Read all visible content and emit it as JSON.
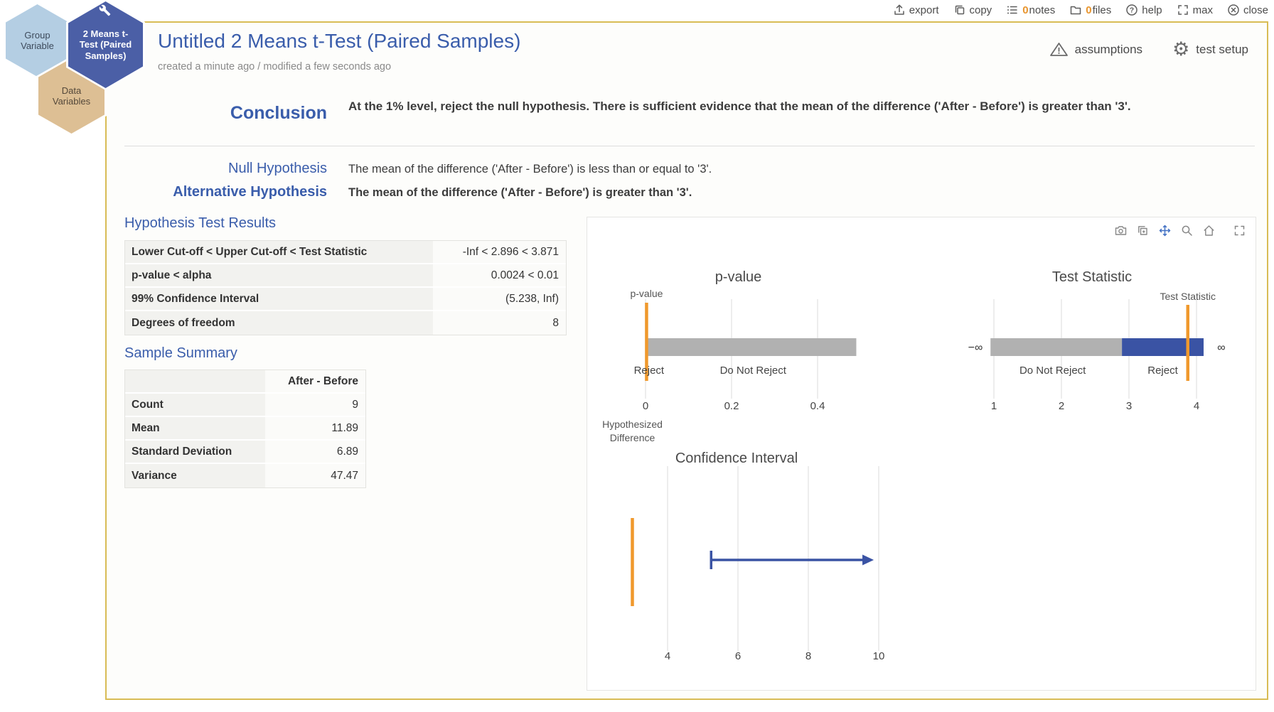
{
  "colors": {
    "accent_blue": "#3a5dab",
    "border_gold": "#d8bc55",
    "bar_gray": "#b3b3b3",
    "bar_blue": "#3a53a4",
    "marker_orange": "#f0992d",
    "hex_blue": "#4b5fa6",
    "hex_light_blue": "#b4cee3",
    "hex_tan": "#ddbf94",
    "count_orange": "#e8952e"
  },
  "window_toolbar": {
    "export_label": "export",
    "copy_label": "copy",
    "notes_count": "0",
    "notes_label": "notes",
    "files_count": "0",
    "files_label": "files",
    "help_label": "help",
    "max_label": "max",
    "close_label": "close"
  },
  "workflow": {
    "nodes": [
      {
        "label": "Group Variable"
      },
      {
        "label": "2 Means t-Test (Paired Samples)"
      },
      {
        "label": "Data Variables"
      }
    ]
  },
  "header": {
    "title": "Untitled 2 Means t-Test (Paired Samples)",
    "subtitle": "created a minute ago / modified a few seconds ago",
    "assumptions_label": "assumptions",
    "test_setup_label": "test setup"
  },
  "conclusion": {
    "label": "Conclusion",
    "text": "At the 1% level, reject the null hypothesis. There is sufficient evidence that the mean of the difference ('After - Before') is greater than '3'."
  },
  "hypotheses": {
    "null_label": "Null Hypothesis",
    "null_text": "The mean of the difference ('After - Before') is less than or equal to '3'.",
    "alt_label": "Alternative Hypothesis",
    "alt_text": "The mean of the difference ('After - Before') is greater than '3'."
  },
  "test_results": {
    "heading": "Hypothesis Test Results",
    "rows": [
      {
        "label": "Lower Cut-off < Upper Cut-off < Test Statistic",
        "value": "-Inf < 2.896 < 3.871"
      },
      {
        "label": "p-value < alpha",
        "value": "0.0024 < 0.01"
      },
      {
        "label": "99% Confidence Interval",
        "value": "(5.238, Inf)"
      },
      {
        "label": "Degrees of freedom",
        "value": "8"
      }
    ]
  },
  "sample_summary": {
    "heading": "Sample Summary",
    "column_header": "After - Before",
    "rows": [
      {
        "label": "Count",
        "value": "9"
      },
      {
        "label": "Mean",
        "value": "11.89"
      },
      {
        "label": "Standard Deviation",
        "value": "6.89"
      },
      {
        "label": "Variance",
        "value": "47.47"
      }
    ]
  },
  "chart_toolbar": {
    "icons": [
      "camera-icon",
      "copy-chart-icon",
      "pan-icon",
      "zoom-icon",
      "home-icon",
      "fullscreen-icon"
    ]
  },
  "chart_data": [
    {
      "type": "bar",
      "id": "p-value-chart",
      "title": "p-value",
      "x_ticks": [
        {
          "v": 0,
          "label": "0"
        },
        {
          "v": 0.2,
          "label": "0.2"
        },
        {
          "v": 0.4,
          "label": "0.4"
        }
      ],
      "segments": [
        {
          "name": "p-value-scale",
          "from": 0,
          "to": 0.49,
          "color": "#b1b1b1"
        }
      ],
      "marker": {
        "value": 0.0024,
        "label": "p-value",
        "color": "#f0992d"
      },
      "region_labels": [
        {
          "at": 0.008,
          "text": "Reject"
        },
        {
          "at": 0.25,
          "text": "Do Not Reject"
        }
      ],
      "p_value": 0.0024,
      "alpha": 0.01
    },
    {
      "type": "bar",
      "id": "test-statistic-chart",
      "title": "Test Statistic",
      "x_ticks": [
        {
          "v": 1,
          "label": "1"
        },
        {
          "v": 2,
          "label": "2"
        },
        {
          "v": 3,
          "label": "3"
        },
        {
          "v": 4,
          "label": "4"
        }
      ],
      "segments": [
        {
          "name": "do-not-reject-region",
          "from": 0.95,
          "to": 2.896,
          "color": "#b1b1b1"
        },
        {
          "name": "reject-region",
          "from": 2.896,
          "to": 4.105,
          "color": "#3a53a4"
        }
      ],
      "marker": {
        "value": 3.871,
        "label": "Test Statistic",
        "color": "#f0992d"
      },
      "region_labels": [
        {
          "at": 1.87,
          "text": "Do Not Reject"
        },
        {
          "at": 3.5,
          "text": "Reject"
        }
      ],
      "edge_labels": [
        {
          "side": "left",
          "text": "−∞"
        },
        {
          "side": "right",
          "text": "∞"
        }
      ],
      "upper_cutoff": 2.896,
      "test_statistic": 3.871
    },
    {
      "type": "line",
      "id": "confidence-interval-chart",
      "title": "Confidence Interval",
      "x_ticks": [
        {
          "v": 4,
          "label": "4"
        },
        {
          "v": 6,
          "label": "6"
        },
        {
          "v": 8,
          "label": "8"
        },
        {
          "v": 10,
          "label": "10"
        }
      ],
      "marker": {
        "value": 3,
        "label": "Hypothesized\nDifference",
        "color": "#f0992d"
      },
      "interval": {
        "lower": 5.238,
        "upper": "Inf",
        "arrow_to_display": 9.86,
        "color": "#3a53a4"
      },
      "hypothesized_difference": 3,
      "confidence_level": "99%"
    }
  ]
}
